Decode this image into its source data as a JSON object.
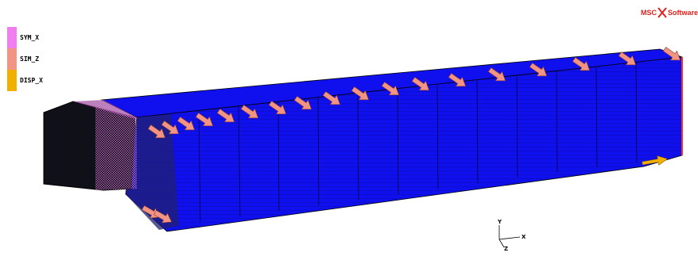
{
  "viewport": {
    "legend": [
      {
        "label": "SYM_X",
        "color": "#f07ef0"
      },
      {
        "label": "SIM_Z",
        "color": "#f29484"
      },
      {
        "label": "DISP_X",
        "color": "#f0b000"
      }
    ],
    "logo": {
      "left": "MSC",
      "right": "Software",
      "color": "#e0201a"
    },
    "axes": {
      "y": "Y",
      "x": "X",
      "z": "Z"
    },
    "colors": {
      "mesh_fill": "#1010ee",
      "mesh_lines": "#000000",
      "pressure_arrow": "#f29484",
      "symmetry_marker": "#f07ef0",
      "disp_arrow": "#f0b000"
    }
  }
}
